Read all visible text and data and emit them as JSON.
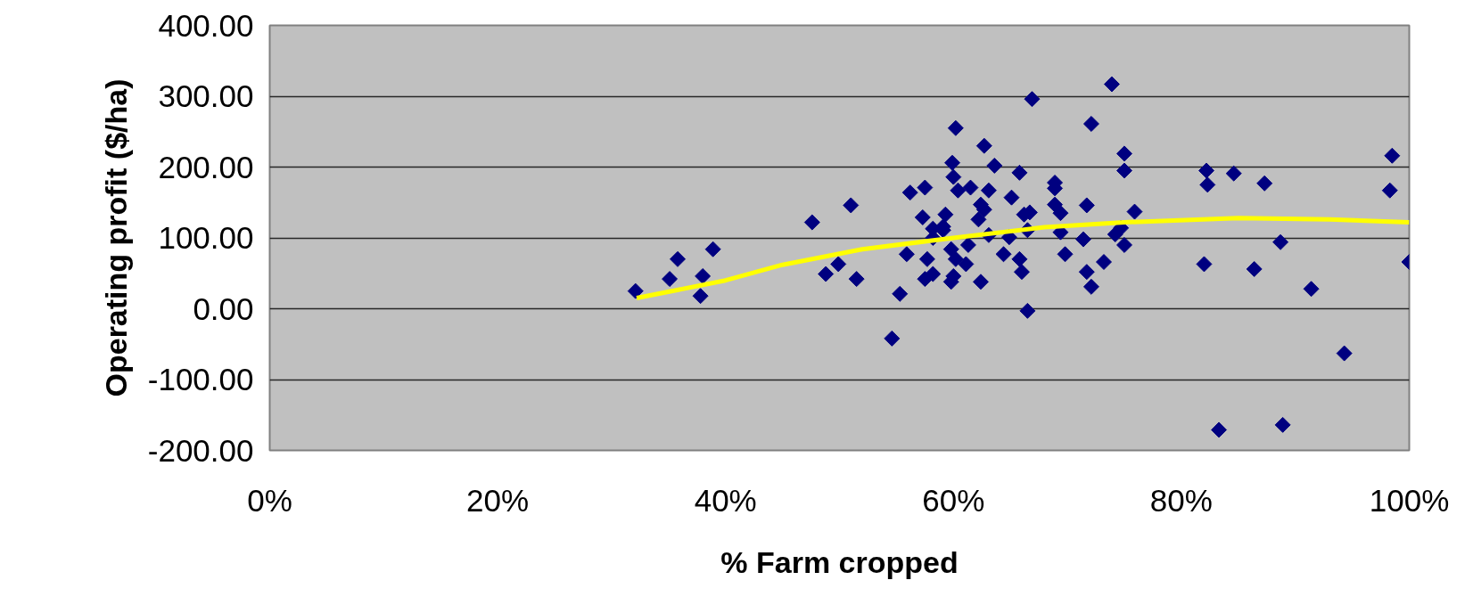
{
  "chart_data": {
    "type": "scatter",
    "xlabel": "% Farm cropped",
    "ylabel": "Operating profit ($/ha)",
    "xlim": [
      0,
      100
    ],
    "ylim": [
      -200,
      400
    ],
    "xticks": [
      {
        "value": 0,
        "label": "0%"
      },
      {
        "value": 20,
        "label": "20%"
      },
      {
        "value": 40,
        "label": "40%"
      },
      {
        "value": 60,
        "label": "60%"
      },
      {
        "value": 80,
        "label": "80%"
      },
      {
        "value": 100,
        "label": "100%"
      }
    ],
    "yticks": [
      {
        "value": -200,
        "label": "-200.00"
      },
      {
        "value": -100,
        "label": "-100.00"
      },
      {
        "value": 0,
        "label": "0.00"
      },
      {
        "value": 100,
        "label": "100.00"
      },
      {
        "value": 200,
        "label": "200.00"
      },
      {
        "value": 300,
        "label": "300.00"
      },
      {
        "value": 400,
        "label": "400.00"
      }
    ],
    "grid": "y",
    "marker": "diamond",
    "series": [
      {
        "color": "#000080",
        "x": [
          32.1,
          35.1,
          35.8,
          37.8,
          38.0,
          38.9,
          47.6,
          48.8,
          49.9,
          51.0,
          51.5,
          66.9,
          60.2,
          62.7,
          59.9,
          63.6,
          65.8,
          60.0,
          56.2,
          57.5,
          60.4,
          61.5,
          63.1,
          65.1,
          62.4,
          62.7,
          66.7,
          66.2,
          57.3,
          59.3,
          62.2,
          58.2,
          59.1,
          59.1,
          66.5,
          63.1,
          64.9,
          58.2,
          55.9,
          59.8,
          61.3,
          64.4,
          65.8,
          57.7,
          60.2,
          61.1,
          66.0,
          57.5,
          58.2,
          60.0,
          59.8,
          62.4,
          55.3,
          66.5,
          54.6,
          73.9,
          72.1,
          75.0,
          75.0,
          82.2,
          82.3,
          68.9,
          68.9,
          68.9,
          69.4,
          71.7,
          75.9,
          74.7,
          74.2,
          69.4,
          71.4,
          75.0,
          69.8,
          73.2,
          71.7,
          72.1,
          82.0,
          84.6,
          87.3,
          98.5,
          98.3,
          88.7,
          86.4,
          91.4,
          100.0,
          94.3,
          83.3,
          88.9
        ],
        "values": [
          25,
          42,
          70,
          18,
          46,
          84,
          122,
          49,
          63,
          146,
          42,
          296,
          255,
          230,
          206,
          202,
          192,
          186,
          164,
          171,
          167,
          171,
          167,
          157,
          147,
          140,
          136,
          133,
          129,
          133,
          126,
          113,
          116,
          111,
          111,
          104,
          101,
          100,
          77,
          84,
          90,
          77,
          70,
          70,
          70,
          63,
          52,
          42,
          49,
          46,
          38,
          38,
          21,
          -3,
          -42,
          317,
          261,
          219,
          195,
          195,
          175,
          178,
          170,
          147,
          135,
          146,
          137,
          114,
          105,
          108,
          98,
          90,
          77,
          66,
          52,
          31,
          63,
          191,
          177,
          216,
          167,
          94,
          56,
          28,
          66,
          -63,
          -171,
          -164
        ]
      },
      {
        "type": "line",
        "color": "#ffff00",
        "marker": "none",
        "x": [
          32.2,
          40,
          45,
          52,
          60,
          68,
          75,
          85,
          93,
          100
        ],
        "values": [
          15,
          40,
          62,
          84,
          100,
          115,
          122,
          128,
          126,
          122
        ]
      }
    ]
  }
}
